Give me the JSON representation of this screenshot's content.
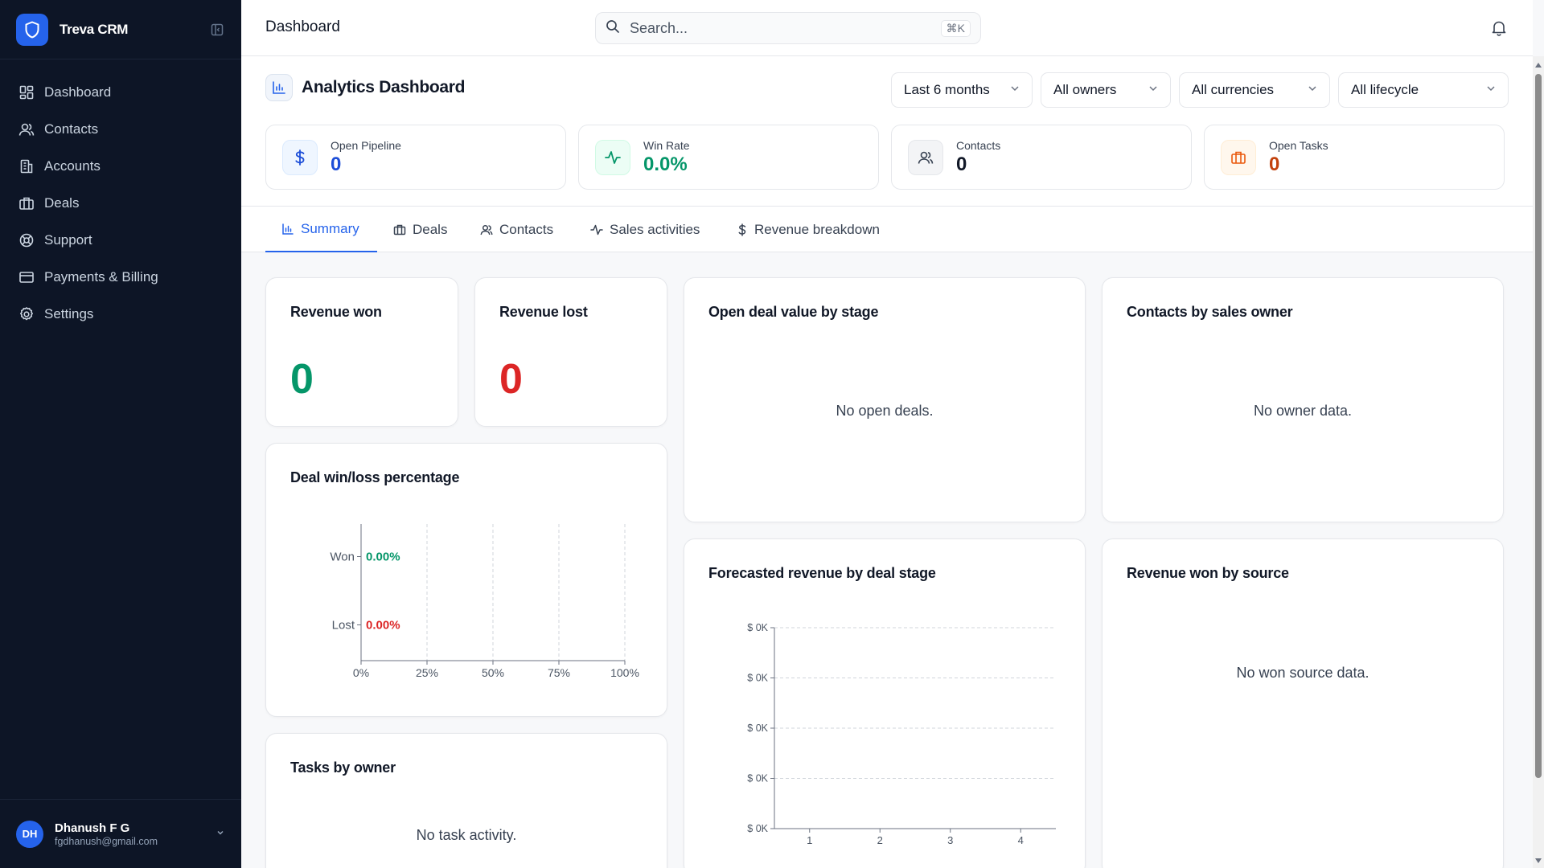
{
  "sidebar": {
    "brand": "Treva CRM",
    "nav": [
      {
        "label": "Dashboard",
        "icon": "dashboard-icon"
      },
      {
        "label": "Contacts",
        "icon": "users-icon"
      },
      {
        "label": "Accounts",
        "icon": "building-icon"
      },
      {
        "label": "Deals",
        "icon": "briefcase-icon"
      },
      {
        "label": "Support",
        "icon": "lifebuoy-icon"
      },
      {
        "label": "Payments & Billing",
        "icon": "credit-card-icon"
      },
      {
        "label": "Settings",
        "icon": "gear-icon"
      }
    ],
    "user": {
      "initials": "DH",
      "name": "Dhanush F G",
      "email": "fgdhanush@gmail.com"
    }
  },
  "topbar": {
    "title": "Dashboard",
    "search_placeholder": "Search...",
    "shortcut": "⌘K"
  },
  "header": {
    "title": "Analytics Dashboard",
    "filters": [
      "Last 6 months",
      "All owners",
      "All currencies",
      "All lifecycle"
    ]
  },
  "kpis": [
    {
      "label": "Open Pipeline",
      "value": "0",
      "color": "#1d4ed8"
    },
    {
      "label": "Win Rate",
      "value": "0.0%",
      "color": "#059669"
    },
    {
      "label": "Contacts",
      "value": "0",
      "color": "#111827"
    },
    {
      "label": "Open Tasks",
      "value": "0",
      "color": "#c2410c"
    }
  ],
  "tabs": [
    {
      "label": "Summary",
      "active": true
    },
    {
      "label": "Deals",
      "active": false
    },
    {
      "label": "Contacts",
      "active": false
    },
    {
      "label": "Sales activities",
      "active": false
    },
    {
      "label": "Revenue breakdown",
      "active": false
    }
  ],
  "cards": {
    "revenue_won": {
      "title": "Revenue won",
      "value": "0",
      "color": "#059669"
    },
    "revenue_lost": {
      "title": "Revenue lost",
      "value": "0",
      "color": "#dc2626"
    },
    "open_deal_value": {
      "title": "Open deal value by stage",
      "empty": "No open deals."
    },
    "contacts_by_owner": {
      "title": "Contacts by sales owner",
      "empty": "No owner data."
    },
    "win_loss": {
      "title": "Deal win/loss percentage"
    },
    "forecast": {
      "title": "Forecasted revenue by deal stage"
    },
    "revenue_by_source": {
      "title": "Revenue won by source",
      "empty": "No won source data."
    },
    "tasks_by_owner": {
      "title": "Tasks by owner",
      "empty": "No task activity."
    }
  },
  "chart_data": [
    {
      "type": "bar",
      "orientation": "horizontal",
      "title": "Deal win/loss percentage",
      "categories": [
        "Won",
        "Lost"
      ],
      "values": [
        0,
        0
      ],
      "data_labels": [
        "0.00%",
        "0.00%"
      ],
      "label_colors": [
        "#059669",
        "#dc2626"
      ],
      "x_ticks": [
        "0%",
        "25%",
        "50%",
        "75%",
        "100%"
      ],
      "xlim": [
        0,
        100
      ],
      "grid": "vertical dashed"
    },
    {
      "type": "line",
      "title": "Forecasted revenue by deal stage",
      "x_ticks": [
        "1",
        "2",
        "3",
        "4"
      ],
      "y_ticks": [
        "$ 0K",
        "$ 0K",
        "$ 0K",
        "$ 0K",
        "$ 0K"
      ],
      "series": [],
      "grid": "horizontal dashed"
    }
  ]
}
